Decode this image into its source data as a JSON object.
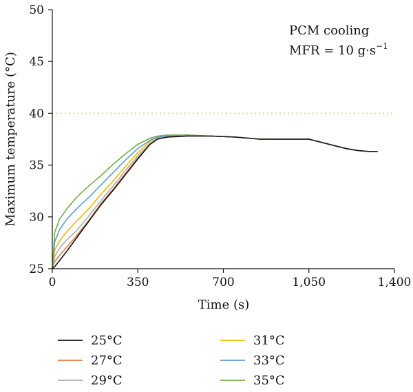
{
  "chart_data": {
    "type": "line",
    "xlabel": "Time (s)",
    "ylabel": "Maximum temperature (°C)",
    "xlim": [
      0,
      1400
    ],
    "ylim": [
      25,
      50
    ],
    "xticks": [
      0,
      350,
      700,
      1050,
      1400
    ],
    "xtick_labels": [
      "0",
      "350",
      "700",
      "1,050",
      "1,400"
    ],
    "yticks": [
      25,
      30,
      35,
      40,
      45,
      50
    ],
    "ytick_labels": [
      "25",
      "30",
      "35",
      "40",
      "45",
      "50"
    ],
    "grid": false,
    "legend_position": "bottom",
    "annotations": {
      "line1": "PCM cooling",
      "line2_prefix": "MFR = 10 g·s",
      "line2_sup": "−1"
    },
    "reference_line": {
      "y": 40,
      "color": "#c8d98a",
      "style": "dotted"
    },
    "series": [
      {
        "name": "25°C",
        "color": "#111111",
        "x": [
          0,
          10,
          30,
          60,
          100,
          150,
          200,
          250,
          300,
          350,
          400,
          430,
          470,
          550,
          650,
          750,
          850,
          950,
          1050,
          1100,
          1150,
          1200,
          1250,
          1300,
          1330
        ],
        "y": [
          25.0,
          25.2,
          25.8,
          26.7,
          28.0,
          29.6,
          31.2,
          32.6,
          34.1,
          35.6,
          37.0,
          37.5,
          37.7,
          37.8,
          37.8,
          37.7,
          37.5,
          37.5,
          37.5,
          37.2,
          36.9,
          36.6,
          36.4,
          36.3,
          36.3
        ]
      },
      {
        "name": "27°C",
        "color": "#e07a3c",
        "x": [
          0,
          10,
          30,
          60,
          100,
          150,
          200,
          250,
          300,
          350,
          400,
          430,
          470,
          550,
          650,
          750,
          850,
          950,
          1050,
          1100,
          1150,
          1200,
          1250,
          1300,
          1330
        ],
        "y": [
          25.0,
          25.7,
          26.3,
          27.1,
          28.2,
          29.7,
          31.3,
          32.7,
          34.2,
          35.7,
          37.0,
          37.5,
          37.7,
          37.8,
          37.8,
          37.7,
          37.5,
          37.5,
          37.5,
          37.2,
          36.9,
          36.6,
          36.4,
          36.3,
          36.3
        ]
      },
      {
        "name": "29°C",
        "color": "#aaaaaa",
        "x": [
          0,
          10,
          30,
          60,
          100,
          150,
          200,
          250,
          300,
          350,
          400,
          430,
          470,
          550,
          650,
          750,
          850,
          950,
          1050,
          1100,
          1150,
          1200,
          1250,
          1300,
          1330
        ],
        "y": [
          25.0,
          26.2,
          27.0,
          27.8,
          28.7,
          30.1,
          31.6,
          33.0,
          34.5,
          35.9,
          37.1,
          37.6,
          37.8,
          37.9,
          37.8,
          37.7,
          37.5,
          37.5,
          37.5,
          37.2,
          36.9,
          36.6,
          36.4,
          36.3,
          36.3
        ]
      },
      {
        "name": "31°C",
        "color": "#f0b800",
        "x": [
          0,
          10,
          30,
          60,
          100,
          150,
          200,
          250,
          300,
          350,
          400,
          430,
          470,
          550,
          650,
          750,
          850,
          950,
          1050,
          1100,
          1150,
          1200,
          1250,
          1300,
          1330
        ],
        "y": [
          25.0,
          26.8,
          27.7,
          28.6,
          29.6,
          30.8,
          32.2,
          33.5,
          34.9,
          36.2,
          37.3,
          37.7,
          37.8,
          37.9,
          37.8,
          37.7,
          37.5,
          37.5,
          37.5,
          37.2,
          36.9,
          36.6,
          36.4,
          36.3,
          36.3
        ]
      },
      {
        "name": "33°C",
        "color": "#5b9bd5",
        "x": [
          0,
          10,
          30,
          60,
          100,
          150,
          200,
          250,
          300,
          350,
          400,
          430,
          470,
          550,
          650,
          750,
          850,
          950,
          1050,
          1100,
          1150,
          1200,
          1250,
          1300,
          1330
        ],
        "y": [
          25.0,
          27.6,
          28.8,
          29.8,
          30.8,
          31.9,
          33.1,
          34.3,
          35.5,
          36.6,
          37.4,
          37.7,
          37.8,
          37.9,
          37.8,
          37.7,
          37.5,
          37.5,
          37.5,
          37.2,
          36.9,
          36.6,
          36.4,
          36.3,
          36.3
        ]
      },
      {
        "name": "35°C",
        "color": "#70ad47",
        "x": [
          0,
          10,
          30,
          60,
          100,
          150,
          200,
          250,
          300,
          350,
          400,
          430,
          470,
          550,
          650,
          750,
          850,
          950,
          1050,
          1100,
          1150,
          1200,
          1250,
          1300,
          1330
        ],
        "y": [
          25.0,
          28.5,
          29.8,
          30.8,
          31.9,
          33.0,
          34.0,
          35.1,
          36.1,
          37.0,
          37.6,
          37.8,
          37.9,
          37.9,
          37.8,
          37.7,
          37.5,
          37.5,
          37.5,
          37.2,
          36.9,
          36.6,
          36.4,
          36.3,
          36.3
        ]
      }
    ]
  }
}
